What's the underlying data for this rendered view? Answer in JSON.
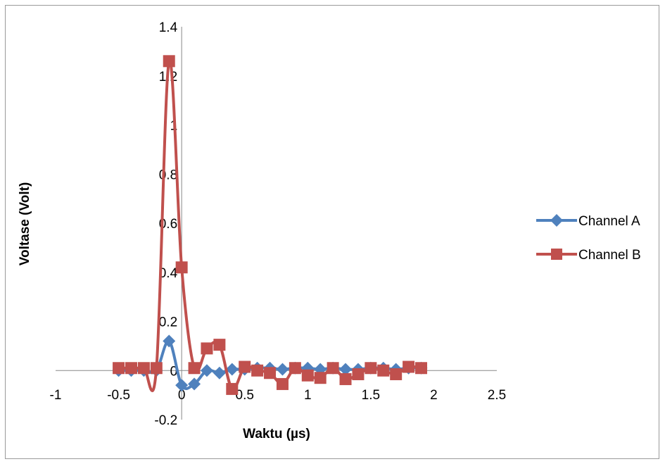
{
  "chart_data": {
    "type": "scatter",
    "title": "",
    "xlabel": "Waktu (µs)",
    "ylabel": "Voltase (Volt)",
    "xlim": [
      -1,
      2.5
    ],
    "ylim": [
      -0.2,
      1.4
    ],
    "xticks": [
      -1,
      -0.5,
      0,
      0.5,
      1,
      1.5,
      2,
      2.5
    ],
    "yticks": [
      -0.2,
      0,
      0.2,
      0.4,
      0.6,
      0.8,
      1,
      1.2,
      1.4
    ],
    "xtick_labels": [
      "-1",
      "-0.5",
      "0",
      "0.5",
      "1",
      "1.5",
      "2",
      "2.5"
    ],
    "ytick_labels": [
      "-0.2",
      "0",
      "0.2",
      "0.4",
      "0.6",
      "0.8",
      "1",
      "1.2",
      "1.4"
    ],
    "grid": false,
    "legend_position": "right",
    "series": [
      {
        "name": "Channel A",
        "color": "#4f81bd",
        "marker": "diamond",
        "smooth": true,
        "x": [
          -0.5,
          -0.4,
          -0.3,
          -0.2,
          -0.1,
          0.0,
          0.1,
          0.2,
          0.3,
          0.4,
          0.5,
          0.6,
          0.7,
          0.8,
          0.9,
          1.0,
          1.1,
          1.2,
          1.3,
          1.4,
          1.5,
          1.6,
          1.7,
          1.8,
          1.9
        ],
        "y": [
          0.0,
          0.0,
          0.0,
          0.0,
          0.12,
          -0.06,
          -0.055,
          0.0,
          -0.01,
          0.005,
          0.005,
          0.01,
          0.01,
          0.005,
          0.01,
          0.01,
          0.005,
          0.01,
          0.005,
          0.005,
          0.01,
          0.01,
          0.005,
          0.01,
          0.01
        ]
      },
      {
        "name": "Channel B",
        "color": "#c0504d",
        "marker": "square",
        "smooth": true,
        "x": [
          -0.5,
          -0.4,
          -0.3,
          -0.2,
          -0.1,
          0.0,
          0.1,
          0.2,
          0.3,
          0.4,
          0.5,
          0.6,
          0.7,
          0.8,
          0.9,
          1.0,
          1.1,
          1.2,
          1.3,
          1.4,
          1.5,
          1.6,
          1.7,
          1.8,
          1.9
        ],
        "y": [
          0.01,
          0.01,
          0.01,
          0.01,
          1.26,
          0.42,
          0.01,
          0.09,
          0.105,
          -0.075,
          0.015,
          0.0,
          -0.01,
          -0.055,
          0.01,
          -0.02,
          -0.03,
          0.01,
          -0.035,
          -0.015,
          0.01,
          0.0,
          -0.015,
          0.015,
          0.01
        ]
      }
    ]
  }
}
